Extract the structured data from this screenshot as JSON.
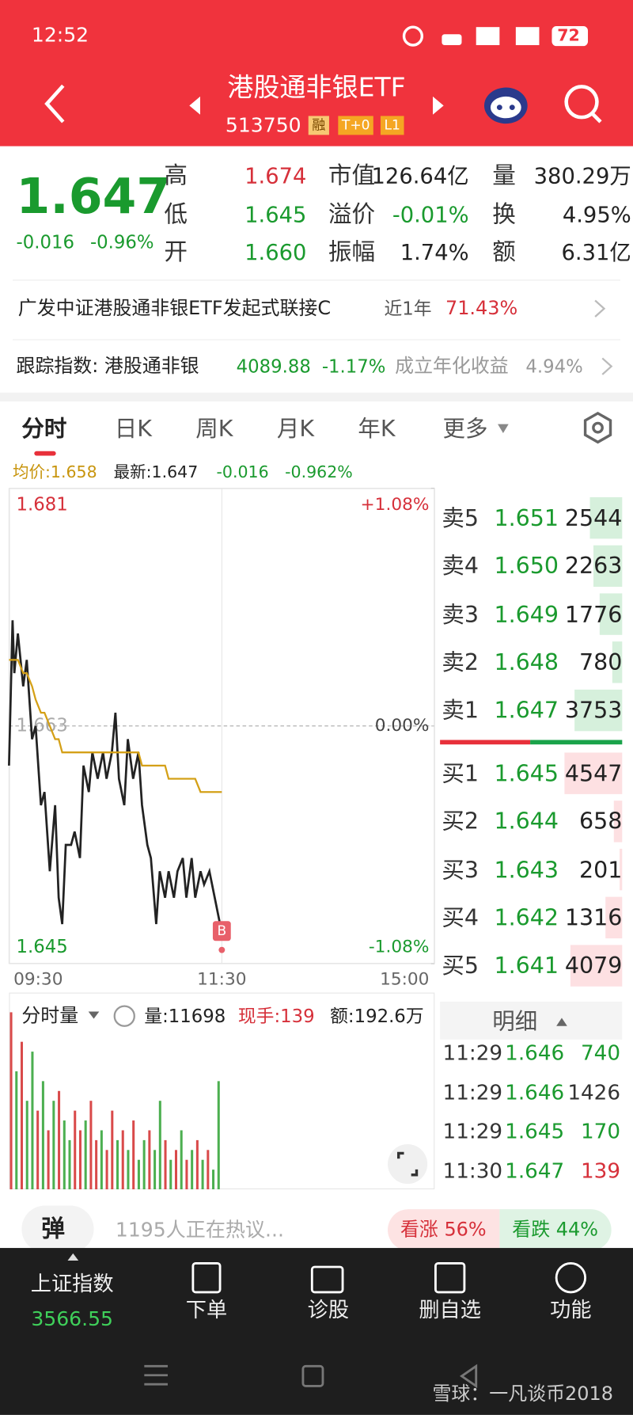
{
  "status_bar": {
    "time": "12:52",
    "battery": "72"
  },
  "header": {
    "title": "港股通非银ETF",
    "code": "513750",
    "tags": [
      "融",
      "T+0",
      "L1"
    ]
  },
  "quote": {
    "price": "1.647",
    "change": "-0.016",
    "change_pct": "-0.96%",
    "stats": [
      [
        {
          "label": "高",
          "value": "1.674",
          "color": "#d6303a"
        },
        {
          "label": "市值",
          "value": "126.64亿",
          "color": "#222"
        },
        {
          "label": "量",
          "value": "380.29万",
          "color": "#222"
        }
      ],
      [
        {
          "label": "低",
          "value": "1.645",
          "color": "#1a9a2e"
        },
        {
          "label": "溢价",
          "value": "-0.01%",
          "color": "#1a9a2e"
        },
        {
          "label": "换",
          "value": "4.95%",
          "color": "#222"
        }
      ],
      [
        {
          "label": "开",
          "value": "1.660",
          "color": "#1a9a2e"
        },
        {
          "label": "振幅",
          "value": "1.74%",
          "color": "#222"
        },
        {
          "label": "额",
          "value": "6.31亿",
          "color": "#222"
        }
      ]
    ]
  },
  "fund_link": {
    "name": "广发中证港股通非银ETF发起式联接C",
    "period": "近1年",
    "return": "71.43%"
  },
  "tracking": {
    "label": "跟踪指数: 港股通非银",
    "value": "4089.88",
    "change": "-1.17%",
    "annual_label": "成立年化收益",
    "annual": "4.94%"
  },
  "tabs": [
    "分时",
    "日K",
    "周K",
    "月K",
    "年K",
    "更多"
  ],
  "info_line": {
    "avg": "均价:1.658",
    "latest": "最新:1.647",
    "change": "-0.016",
    "pct": "-0.962%"
  },
  "chart_data": {
    "type": "line",
    "annotation": "B",
    "x": [
      0,
      2,
      3,
      5,
      8,
      10,
      13,
      15,
      18,
      20,
      23,
      26,
      28,
      30,
      32,
      35,
      37,
      40,
      42,
      45,
      47,
      50,
      53,
      55,
      58,
      60,
      62,
      65,
      67,
      70,
      73,
      75,
      78,
      80,
      83,
      85,
      88,
      90,
      93,
      95,
      98,
      100,
      103,
      105,
      108,
      110,
      113,
      116,
      119,
      120
    ],
    "series": [
      {
        "name": "最新",
        "color": "#222222",
        "values": [
          1.66,
          1.671,
          1.667,
          1.67,
          1.666,
          1.668,
          1.662,
          1.663,
          1.657,
          1.658,
          1.652,
          1.657,
          1.65,
          1.648,
          1.654,
          1.654,
          1.655,
          1.653,
          1.66,
          1.658,
          1.661,
          1.659,
          1.661,
          1.659,
          1.661,
          1.664,
          1.659,
          1.657,
          1.662,
          1.659,
          1.661,
          1.657,
          1.654,
          1.653,
          1.648,
          1.652,
          1.65,
          1.652,
          1.65,
          1.652,
          1.653,
          1.65,
          1.653,
          1.65,
          1.652,
          1.651,
          1.652,
          1.65,
          1.648,
          1.647
        ]
      },
      {
        "name": "均价",
        "color": "#d4a017",
        "values": [
          1.668,
          1.668,
          1.668,
          1.668,
          1.667,
          1.667,
          1.666,
          1.665,
          1.664,
          1.664,
          1.663,
          1.662,
          1.662,
          1.661,
          1.661,
          1.661,
          1.661,
          1.661,
          1.661,
          1.661,
          1.661,
          1.661,
          1.661,
          1.661,
          1.661,
          1.661,
          1.661,
          1.661,
          1.661,
          1.661,
          1.661,
          1.66,
          1.66,
          1.66,
          1.66,
          1.66,
          1.66,
          1.659,
          1.659,
          1.659,
          1.659,
          1.659,
          1.659,
          1.659,
          1.658,
          1.658,
          1.658,
          1.658,
          1.658,
          1.658
        ]
      }
    ],
    "xlim": [
      0,
      240
    ],
    "xticks": [
      {
        "value": 0,
        "label": "09:30"
      },
      {
        "value": 120,
        "label": "11:30"
      },
      {
        "value": 240,
        "label": "15:00"
      }
    ],
    "ylim": [
      1.645,
      1.681
    ],
    "yticks": [
      1.645,
      1.663,
      1.681
    ],
    "y2lim": [
      -1.08,
      1.08
    ],
    "y2ticks": [
      {
        "value": -1.08,
        "label": "-1.08%"
      },
      {
        "value": 0,
        "label": "0.00%"
      },
      {
        "value": 1.08,
        "label": "+1.08%"
      }
    ]
  },
  "volume_chart": {
    "type": "bar",
    "label": "分时量",
    "volume": "量:11698",
    "current": "现手:139",
    "amount": "额:192.6万",
    "ylim": [
      0,
      20
    ],
    "values": [
      18,
      12,
      15,
      9,
      14,
      8,
      11,
      6,
      9,
      10,
      7,
      5,
      8,
      6,
      7,
      9,
      5,
      6,
      4,
      8,
      5,
      6,
      4,
      7,
      3,
      5,
      6,
      4,
      9,
      5,
      3,
      4,
      6,
      3,
      4,
      5,
      3,
      4,
      2,
      11
    ],
    "colors": [
      "#d94a4a",
      "#4caf50",
      "#d94a4a",
      "#4caf50",
      "#4caf50",
      "#d94a4a",
      "#4caf50",
      "#d94a4a",
      "#4caf50",
      "#d94a4a",
      "#4caf50",
      "#4caf50",
      "#d94a4a",
      "#d94a4a",
      "#4caf50",
      "#d94a4a",
      "#d94a4a",
      "#4caf50",
      "#d94a4a",
      "#d94a4a",
      "#4caf50",
      "#d94a4a",
      "#4caf50",
      "#d94a4a",
      "#4caf50",
      "#4caf50",
      "#d94a4a",
      "#4caf50",
      "#4caf50",
      "#d94a4a",
      "#4caf50",
      "#d94a4a",
      "#4caf50",
      "#d94a4a",
      "#4caf50",
      "#d94a4a",
      "#4caf50",
      "#d94a4a",
      "#4caf50",
      "#4caf50"
    ]
  },
  "order_book": {
    "asks": [
      {
        "label": "卖5",
        "price": "1.651",
        "volume": 2544
      },
      {
        "label": "卖4",
        "price": "1.650",
        "volume": 2263
      },
      {
        "label": "卖3",
        "price": "1.649",
        "volume": 1776
      },
      {
        "label": "卖2",
        "price": "1.648",
        "volume": 780
      },
      {
        "label": "卖1",
        "price": "1.647",
        "volume": 3753
      }
    ],
    "bids": [
      {
        "label": "买1",
        "price": "1.645",
        "volume": 4547
      },
      {
        "label": "买2",
        "price": "1.644",
        "volume": 658
      },
      {
        "label": "买3",
        "price": "1.643",
        "volume": 201
      },
      {
        "label": "买4",
        "price": "1.642",
        "volume": 1316
      },
      {
        "label": "买5",
        "price": "1.641",
        "volume": 4079
      }
    ]
  },
  "trades": {
    "title": "明细",
    "rows": [
      {
        "time": "11:29",
        "price": "1.646",
        "volume": "740",
        "color": "#1a9a2e"
      },
      {
        "time": "11:29",
        "price": "1.646",
        "volume": "1426",
        "color": "#333"
      },
      {
        "time": "11:29",
        "price": "1.645",
        "volume": "170",
        "color": "#1a9a2e"
      },
      {
        "time": "11:30",
        "price": "1.647",
        "volume": "139",
        "color": "#d6303a"
      }
    ]
  },
  "discussion": {
    "button": "弹",
    "text": "1195人正在热议...",
    "up": "看涨 56%",
    "down": "看跌 44%"
  },
  "bottom_nav": {
    "index_name": "上证指数",
    "index_value": "3566.55",
    "items": [
      "下单",
      "诊股",
      "删自选",
      "功能"
    ]
  },
  "watermark": "雪球：一凡谈币2018"
}
